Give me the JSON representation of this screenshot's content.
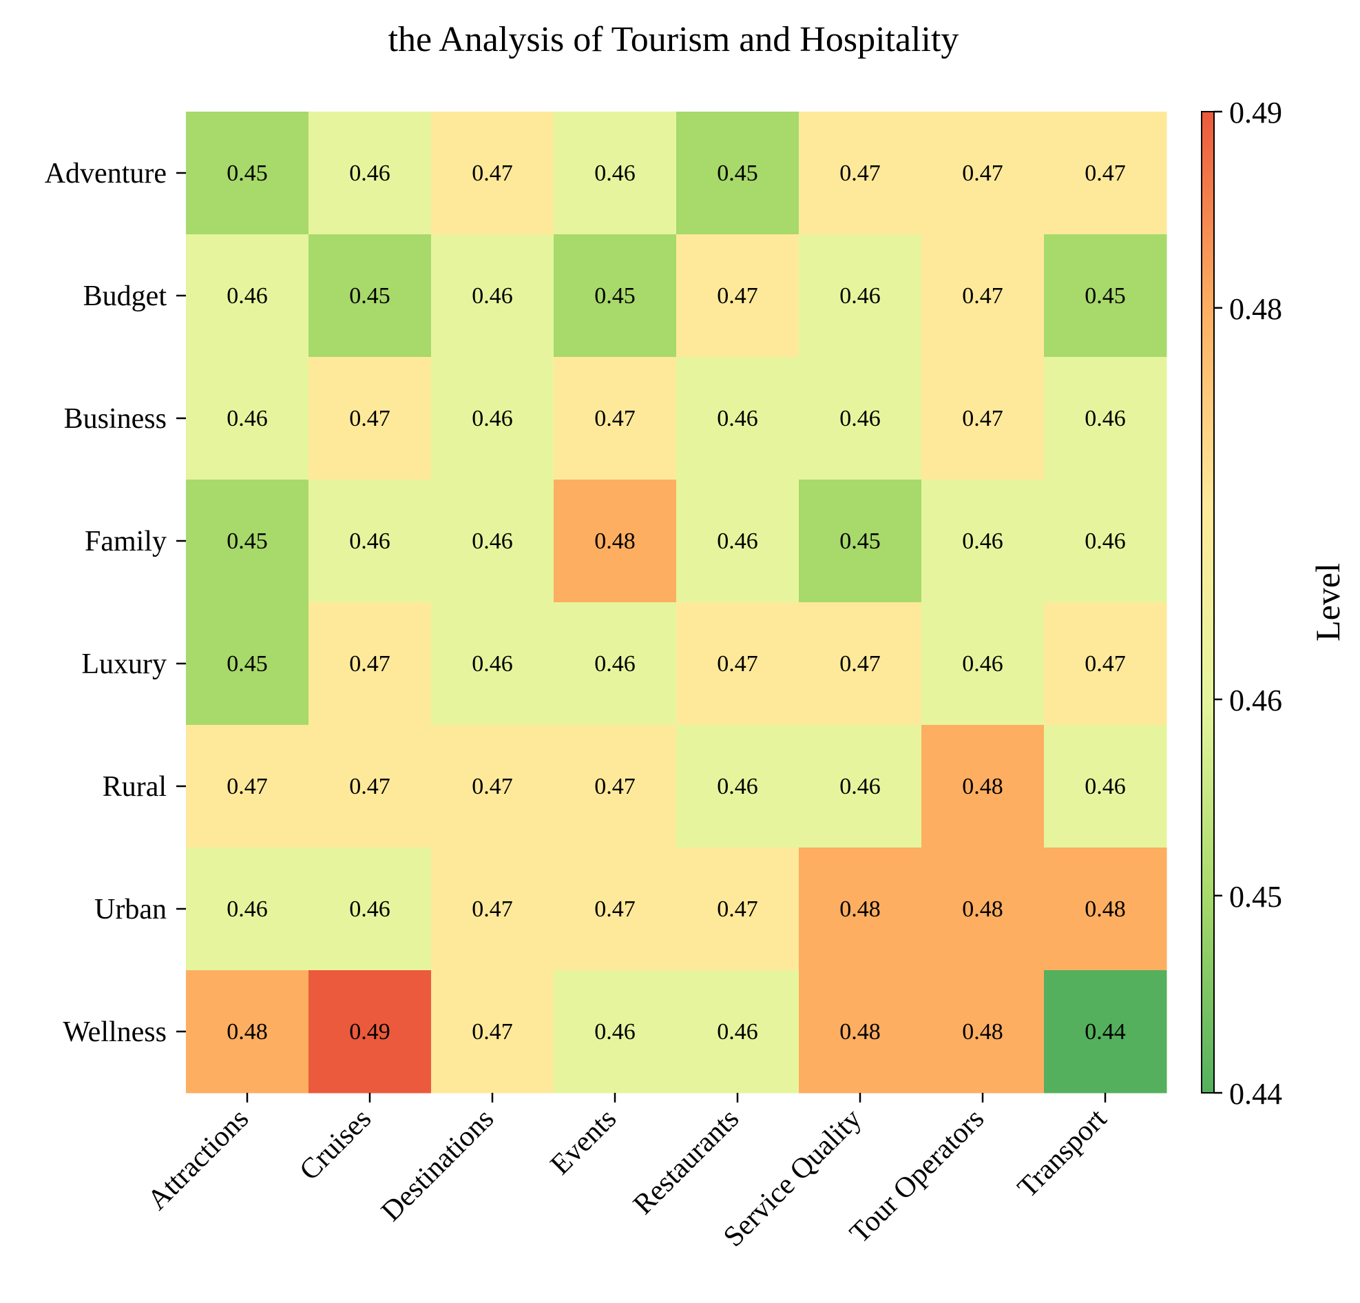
{
  "chart_data": {
    "type": "heatmap",
    "title": "the Analysis of Tourism and Hospitality",
    "xlabel": "",
    "ylabel": "",
    "x_categories": [
      "Attractions",
      "Cruises",
      "Destinations",
      "Events",
      "Restaurants",
      "Service Quality",
      "Tour Operators",
      "Transport"
    ],
    "y_categories": [
      "Adventure",
      "Budget",
      "Business",
      "Family",
      "Luxury",
      "Rural",
      "Urban",
      "Wellness"
    ],
    "values": [
      [
        0.45,
        0.46,
        0.47,
        0.46,
        0.45,
        0.47,
        0.47,
        0.47
      ],
      [
        0.46,
        0.45,
        0.46,
        0.45,
        0.47,
        0.46,
        0.47,
        0.45
      ],
      [
        0.46,
        0.47,
        0.46,
        0.47,
        0.46,
        0.46,
        0.47,
        0.46
      ],
      [
        0.45,
        0.46,
        0.46,
        0.48,
        0.46,
        0.45,
        0.46,
        0.46
      ],
      [
        0.45,
        0.47,
        0.46,
        0.46,
        0.47,
        0.47,
        0.46,
        0.47
      ],
      [
        0.47,
        0.47,
        0.47,
        0.47,
        0.46,
        0.46,
        0.48,
        0.46
      ],
      [
        0.46,
        0.46,
        0.47,
        0.47,
        0.47,
        0.48,
        0.48,
        0.48
      ],
      [
        0.48,
        0.49,
        0.47,
        0.46,
        0.46,
        0.48,
        0.48,
        0.44
      ]
    ],
    "colorbar": {
      "label": "Level",
      "ticks": [
        0.44,
        0.45,
        0.46,
        0.48,
        0.49
      ],
      "tick_labels": [
        "0.44",
        "0.45",
        "0.46",
        "0.48",
        "0.49"
      ],
      "range": [
        0.44,
        0.49
      ]
    },
    "value_colors": {
      "0.44": "#54b05d",
      "0.45": "#a7d96b",
      "0.46": "#e6f59d",
      "0.47": "#fee99a",
      "0.48": "#fdae61",
      "0.49": "#eb5a3c"
    },
    "grid": false,
    "legend": "colorbar-right"
  }
}
